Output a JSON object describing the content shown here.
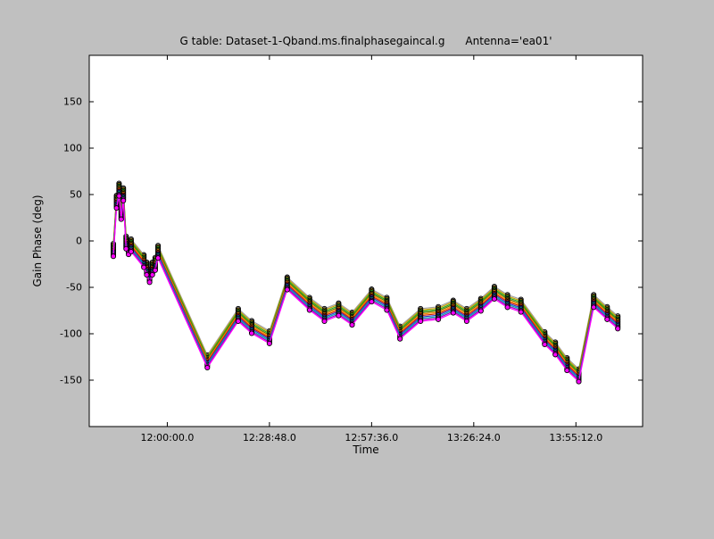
{
  "figure": {
    "background_color": "#c0c0c0",
    "plot_background_color": "#ffffff",
    "border_color": "#000000"
  },
  "chart_data": {
    "type": "line",
    "title": "G table: Dataset-1-Qband.ms.finalphasegaincal.g      Antenna='ea01'",
    "xlabel": "Time",
    "ylabel": "Gain Phase (deg)",
    "grid": false,
    "legend": false,
    "x_units": "minutes relative to 12:00:00.0",
    "xlim": [
      -22,
      134
    ],
    "ylim": [
      -200,
      200
    ],
    "x_ticks": [
      {
        "value": 0.0,
        "label": "12:00:00.0"
      },
      {
        "value": 28.8,
        "label": "12:28:48.0"
      },
      {
        "value": 57.6,
        "label": "12:57:36.0"
      },
      {
        "value": 86.4,
        "label": "13:26:24.0"
      },
      {
        "value": 115.2,
        "label": "13:55:12.0"
      }
    ],
    "y_ticks": [
      150,
      100,
      50,
      0,
      -50,
      -100,
      -150
    ],
    "x": [
      -15.2,
      -14.3,
      -13.6,
      -13.0,
      -12.4,
      -11.6,
      -10.9,
      -10.2,
      -6.6,
      -5.8,
      -5.0,
      -4.2,
      -3.4,
      -2.6,
      11.3,
      20.0,
      23.8,
      28.8,
      33.8,
      40.1,
      44.3,
      48.3,
      52.1,
      57.6,
      61.9,
      65.6,
      71.4,
      76.4,
      80.6,
      84.4,
      88.4,
      92.2,
      95.9,
      99.7,
      106.4,
      109.4,
      112.7,
      116.0,
      120.2,
      124.0,
      127.0
    ],
    "base_phase": [
      -10,
      42,
      55,
      30,
      50,
      -2,
      -8,
      -5,
      -22,
      -30,
      -38,
      -30,
      -25,
      -12,
      -130,
      -80,
      -93,
      -104,
      -46,
      -68,
      -80,
      -74,
      -84,
      -59,
      -68,
      -99,
      -80,
      -78,
      -71,
      -80,
      -69,
      -56,
      -65,
      -70,
      -105,
      -116,
      -133,
      -145,
      -65,
      -78,
      -88
    ],
    "series": [
      {
        "color": "#a0a0a0",
        "offset": 7.0
      },
      {
        "color": "#c8a000",
        "offset": 5.5
      },
      {
        "color": "#22aa22",
        "offset": 4.0
      },
      {
        "color": "#667700",
        "offset": 2.5
      },
      {
        "color": "#ff8800",
        "offset": 1.0
      },
      {
        "color": "#cc2200",
        "offset": -0.5
      },
      {
        "color": "#3333cc",
        "offset": -2.0
      },
      {
        "color": "#00aaaa",
        "offset": -3.5
      },
      {
        "color": "#9900bb",
        "offset": -5.0
      },
      {
        "color": "#ff00ff",
        "offset": -6.5
      }
    ],
    "marker": {
      "shape": "circle",
      "radius": 2.6,
      "edge_color": "#000000"
    }
  }
}
